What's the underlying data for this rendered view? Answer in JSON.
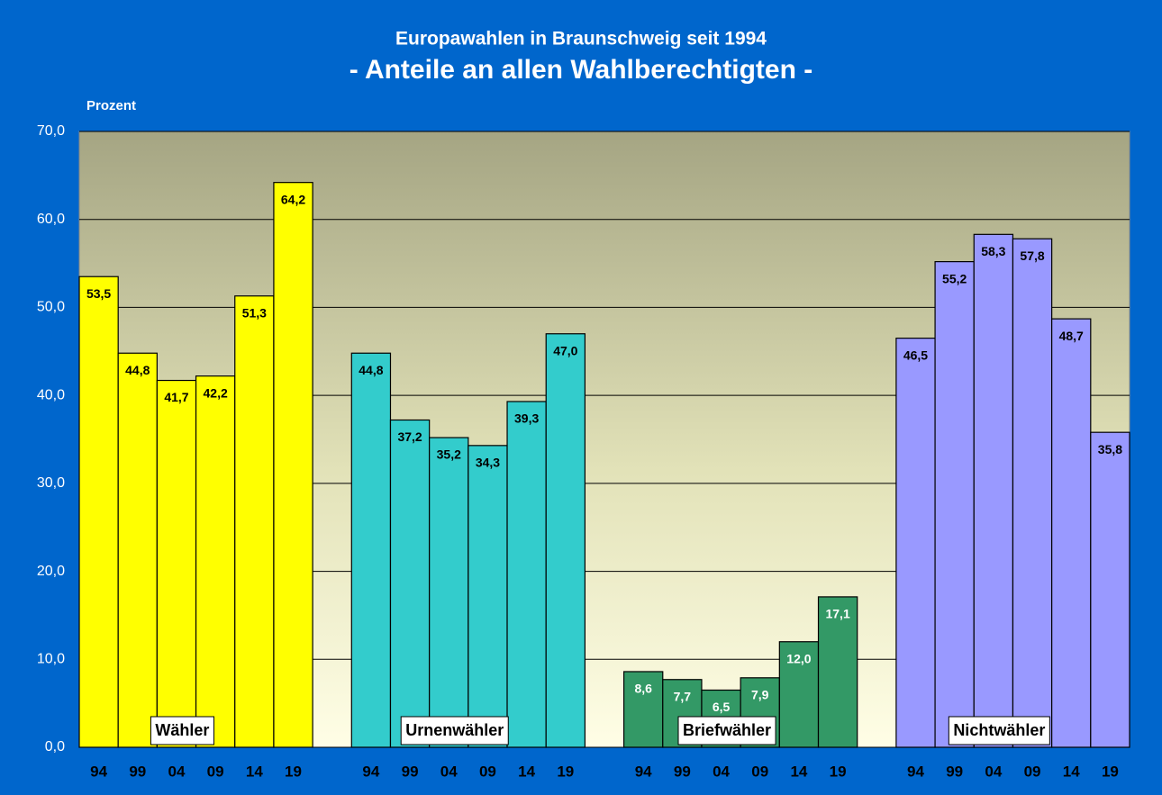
{
  "chart_data": {
    "type": "bar",
    "title": "Europawahlen in Braunschweig seit 1994",
    "subtitle": "- Anteile an allen Wahlberechtigten -",
    "y_label": "Prozent",
    "categories": [
      "94",
      "99",
      "04",
      "09",
      "14",
      "19"
    ],
    "series": [
      {
        "name": "Wähler",
        "color": "#ffff00",
        "label_color": "#000000",
        "values": [
          53.5,
          44.8,
          41.7,
          42.2,
          51.3,
          64.2
        ],
        "value_labels": [
          "53,5",
          "44,8",
          "41,7",
          "42,2",
          "51,3",
          "64,2"
        ]
      },
      {
        "name": "Urnenwähler",
        "color": "#33cccc",
        "label_color": "#000000",
        "values": [
          44.8,
          37.2,
          35.2,
          34.3,
          39.3,
          47.0
        ],
        "value_labels": [
          "44,8",
          "37,2",
          "35,2",
          "34,3",
          "39,3",
          "47,0"
        ]
      },
      {
        "name": "Briefwähler",
        "color": "#339966",
        "label_color": "#ffffff",
        "values": [
          8.6,
          7.7,
          6.5,
          7.9,
          12.0,
          17.1
        ],
        "value_labels": [
          "8,6",
          "7,7",
          "6,5",
          "7,9",
          "12,0",
          "17,1"
        ]
      },
      {
        "name": "Nichtwähler",
        "color": "#9999ff",
        "label_color": "#000000",
        "values": [
          46.5,
          55.2,
          58.3,
          57.8,
          48.7,
          35.8
        ],
        "value_labels": [
          "46,5",
          "55,2",
          "58,3",
          "57,8",
          "48,7",
          "35,8"
        ]
      }
    ],
    "ylim": [
      0,
      70
    ],
    "yticks": [
      {
        "value": 0,
        "label": "0,0"
      },
      {
        "value": 10,
        "label": "10,0"
      },
      {
        "value": 20,
        "label": "20,0"
      },
      {
        "value": 30,
        "label": "30,0"
      },
      {
        "value": 40,
        "label": "40,0"
      },
      {
        "value": 50,
        "label": "50,0"
      },
      {
        "value": 60,
        "label": "60,0"
      },
      {
        "value": 70,
        "label": "70,0"
      }
    ],
    "grid": true
  }
}
